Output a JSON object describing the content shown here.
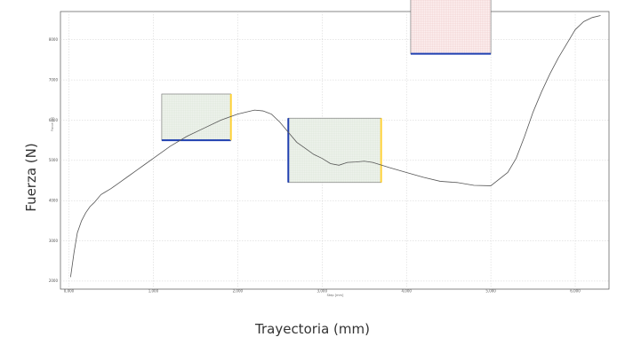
{
  "outer_labels": {
    "y": "Fuerza (N)",
    "x": "Trayectoria (mm)"
  },
  "chart_data": {
    "type": "line",
    "title": "",
    "xlabel": "Step [mm]",
    "ylabel": "Force [N]",
    "xlim": [
      -0.1,
      6.4
    ],
    "ylim": [
      1800,
      8700
    ],
    "grid": true,
    "x_ticks": [
      0,
      1,
      2,
      3,
      4,
      5,
      6
    ],
    "x_tick_labels": [
      "0,000",
      "1,000",
      "2,000",
      "3,000",
      "4,000",
      "5,000",
      "6,000"
    ],
    "y_ticks": [
      2000,
      3000,
      4000,
      5000,
      6000,
      7000,
      8000
    ],
    "y_tick_labels": [
      "2000",
      "3000",
      "4000",
      "5000",
      "6000",
      "7000",
      "8000"
    ],
    "series": [
      {
        "x": [
          0.02,
          0.06,
          0.1,
          0.15,
          0.2,
          0.25,
          0.3,
          0.38,
          0.42,
          0.5,
          0.6,
          0.7,
          0.8,
          0.9,
          1.0,
          1.2,
          1.4,
          1.6,
          1.8,
          2.0,
          2.1,
          2.2,
          2.3,
          2.4,
          2.5,
          2.6,
          2.7,
          2.8,
          2.9,
          3.0,
          3.1,
          3.2,
          3.3,
          3.4,
          3.5,
          3.6,
          3.8,
          4.0,
          4.2,
          4.4,
          4.6,
          4.8,
          5.0,
          5.2,
          5.3,
          5.4,
          5.5,
          5.6,
          5.7,
          5.8,
          5.9,
          6.0,
          6.1,
          6.2,
          6.3
        ],
        "y": [
          2100,
          2700,
          3200,
          3500,
          3700,
          3850,
          3950,
          4150,
          4200,
          4300,
          4450,
          4600,
          4750,
          4900,
          5050,
          5350,
          5600,
          5800,
          6000,
          6150,
          6200,
          6250,
          6230,
          6150,
          5950,
          5700,
          5450,
          5300,
          5150,
          5050,
          4920,
          4880,
          4950,
          4960,
          4980,
          4950,
          4820,
          4700,
          4580,
          4480,
          4450,
          4380,
          4370,
          4700,
          5050,
          5600,
          6200,
          6700,
          7150,
          7550,
          7900,
          8250,
          8450,
          8550,
          8600
        ]
      }
    ],
    "annotations": [
      {
        "type": "box",
        "x0": 1.1,
        "x1": 1.92,
        "y0": 5500,
        "y1": 6650,
        "fill": "#eef3ec",
        "hatch": "#cfdccb",
        "bottom_edge": "#1f3fb0",
        "right_edge": "#ffd23a"
      },
      {
        "type": "box",
        "x0": 2.6,
        "x1": 3.7,
        "y0": 4450,
        "y1": 6050,
        "fill": "#eef3ec",
        "hatch": "#cfdccb",
        "left_edge": "#1f3fb0",
        "right_edge": "#ffd23a"
      },
      {
        "type": "box",
        "x0": 4.05,
        "x1": 5.0,
        "y0": 7650,
        "y1": 9350,
        "fill": "#fdf0f0",
        "hatch": "#e3b8b8",
        "bottom_edge": "#1f3fb0"
      }
    ]
  }
}
